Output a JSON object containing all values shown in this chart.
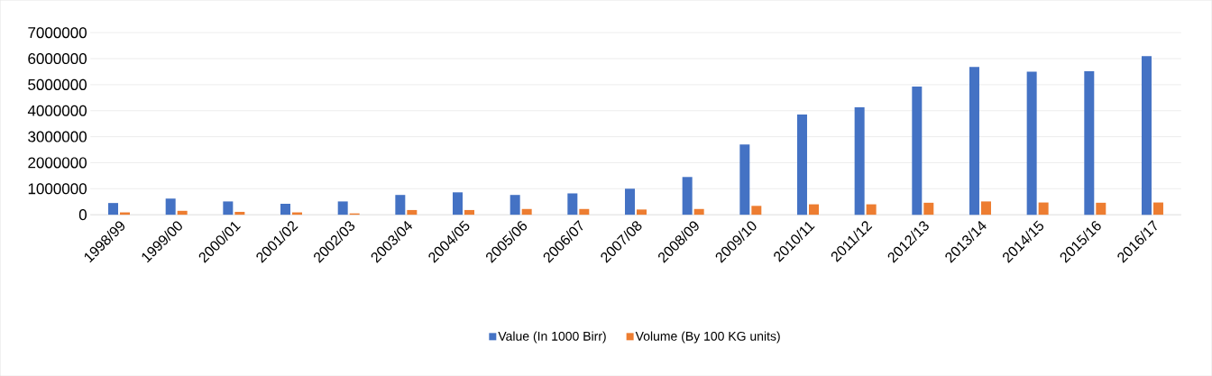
{
  "chart_data": {
    "type": "bar",
    "categories": [
      "1998/99",
      "1999/00",
      "2000/01",
      "2001/02",
      "2002/03",
      "2003/04",
      "2004/05",
      "2005/06",
      "2006/07",
      "2007/08",
      "2008/09",
      "2009/10",
      "2010/11",
      "2011/12",
      "2012/13",
      "2013/14",
      "2014/15",
      "2015/16",
      "2016/17"
    ],
    "series": [
      {
        "name": "Value (In 1000 Birr)",
        "color": "#4472c4",
        "values": [
          450000,
          620000,
          510000,
          420000,
          510000,
          760000,
          860000,
          760000,
          820000,
          1000000,
          1450000,
          2700000,
          3850000,
          4130000,
          4930000,
          5680000,
          5500000,
          5520000,
          6100000
        ]
      },
      {
        "name": "Volume (By 100 KG units)",
        "color": "#ed7d31",
        "values": [
          90000,
          150000,
          110000,
          90000,
          50000,
          180000,
          180000,
          220000,
          220000,
          200000,
          220000,
          340000,
          400000,
          400000,
          460000,
          510000,
          470000,
          460000,
          470000
        ]
      }
    ],
    "ylim": [
      0,
      7000000
    ],
    "yticks": [
      0,
      1000000,
      2000000,
      3000000,
      4000000,
      5000000,
      6000000,
      7000000
    ],
    "grid": "y",
    "legend": "bottom"
  }
}
